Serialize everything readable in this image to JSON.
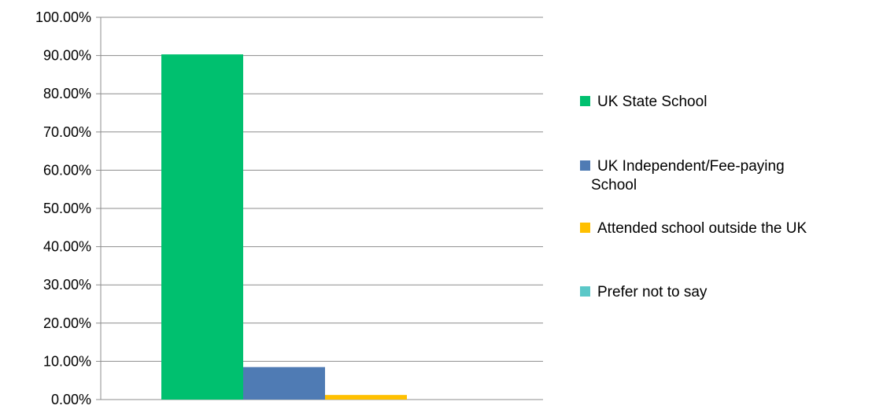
{
  "chart_data": {
    "type": "bar",
    "categories": [
      ""
    ],
    "series": [
      {
        "name": "UK State School",
        "values": [
          90.3
        ],
        "color": "#00c06f"
      },
      {
        "name": "UK Independent/Fee-paying School",
        "values": [
          8.5
        ],
        "color": "#4f7bb4"
      },
      {
        "name": "Attended school outside the UK",
        "values": [
          1.2
        ],
        "color": "#ffc000"
      },
      {
        "name": "Prefer not to say",
        "values": [
          0.0
        ],
        "color": "#5bc8c8"
      }
    ],
    "ylim": [
      0,
      100
    ],
    "yticks": [
      "0.00%",
      "10.00%",
      "20.00%",
      "30.00%",
      "40.00%",
      "50.00%",
      "60.00%",
      "70.00%",
      "80.00%",
      "90.00%",
      "100.00%"
    ],
    "grid": true,
    "legend_position": "right",
    "title": "",
    "xlabel": "",
    "ylabel": ""
  }
}
